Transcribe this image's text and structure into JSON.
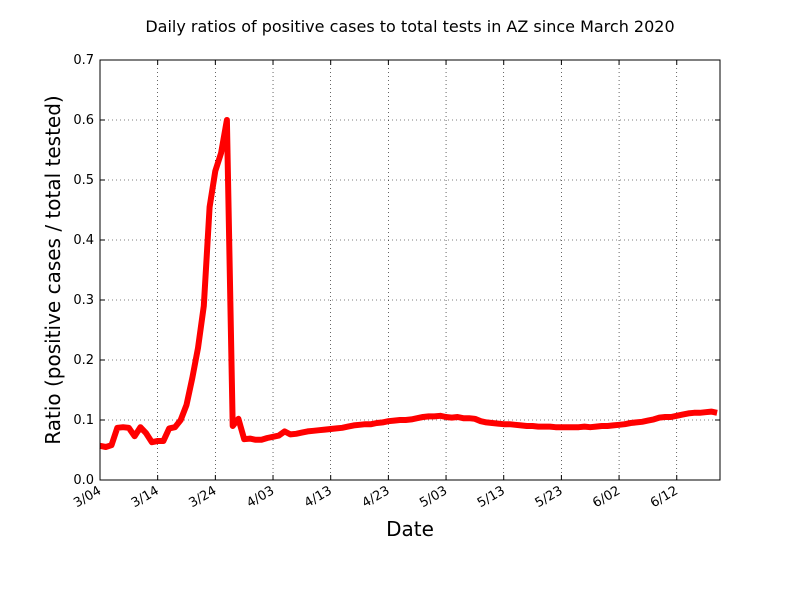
{
  "chart_data": {
    "type": "line",
    "title": "Daily ratios of positive cases to total tests in AZ since March 2020",
    "xlabel": "Date",
    "ylabel": "Ratio (positive cases / total tested)",
    "ylim": [
      0.0,
      0.7
    ],
    "yticks": [
      0.0,
      0.1,
      0.2,
      0.3,
      0.4,
      0.5,
      0.6,
      0.7
    ],
    "ytick_labels": [
      "0.0",
      "0.1",
      "0.2",
      "0.3",
      "0.4",
      "0.5",
      "0.6",
      "0.7"
    ],
    "xlim": [
      "3/04",
      "6/19"
    ],
    "xticks": [
      "3/04",
      "3/14",
      "3/24",
      "4/03",
      "4/13",
      "4/23",
      "5/03",
      "5/13",
      "5/23",
      "6/02",
      "6/12"
    ],
    "grid": true,
    "series": [
      {
        "color": "#ff0000",
        "x": [
          "3/04",
          "3/05",
          "3/06",
          "3/07",
          "3/08",
          "3/09",
          "3/10",
          "3/11",
          "3/12",
          "3/13",
          "3/14",
          "3/15",
          "3/16",
          "3/17",
          "3/18",
          "3/19",
          "3/20",
          "3/21",
          "3/22",
          "3/23",
          "3/24",
          "3/25",
          "3/26",
          "3/27",
          "3/28",
          "3/29",
          "3/30",
          "3/31",
          "4/01",
          "4/02",
          "4/03",
          "4/04",
          "4/05",
          "4/06",
          "4/07",
          "4/08",
          "4/09",
          "4/10",
          "4/11",
          "4/12",
          "4/13",
          "4/14",
          "4/15",
          "4/16",
          "4/17",
          "4/18",
          "4/19",
          "4/20",
          "4/21",
          "4/22",
          "4/23",
          "4/24",
          "4/25",
          "4/26",
          "4/27",
          "4/28",
          "4/29",
          "4/30",
          "5/01",
          "5/02",
          "5/03",
          "5/04",
          "5/05",
          "5/06",
          "5/07",
          "5/08",
          "5/09",
          "5/10",
          "5/11",
          "5/12",
          "5/13",
          "5/14",
          "5/15",
          "5/16",
          "5/17",
          "5/18",
          "5/19",
          "5/20",
          "5/21",
          "5/22",
          "5/23",
          "5/24",
          "5/25",
          "5/26",
          "5/27",
          "5/28",
          "5/29",
          "5/30",
          "5/31",
          "6/01",
          "6/02",
          "6/03",
          "6/04",
          "6/05",
          "6/06",
          "6/07",
          "6/08",
          "6/09",
          "6/10",
          "6/11",
          "6/12",
          "6/13",
          "6/14",
          "6/15",
          "6/16",
          "6/17",
          "6/18",
          "6/19"
        ],
        "values": [
          0.057,
          0.055,
          0.058,
          0.087,
          0.088,
          0.087,
          0.073,
          0.088,
          0.078,
          0.063,
          0.065,
          0.065,
          0.086,
          0.088,
          0.1,
          0.125,
          0.17,
          0.22,
          0.29,
          0.455,
          0.515,
          0.545,
          0.6,
          0.09,
          0.102,
          0.068,
          0.069,
          0.067,
          0.067,
          0.07,
          0.072,
          0.074,
          0.081,
          0.076,
          0.077,
          0.079,
          0.081,
          0.082,
          0.083,
          0.084,
          0.085,
          0.086,
          0.087,
          0.089,
          0.091,
          0.092,
          0.093,
          0.093,
          0.095,
          0.096,
          0.098,
          0.099,
          0.1,
          0.1,
          0.101,
          0.103,
          0.105,
          0.106,
          0.106,
          0.107,
          0.105,
          0.104,
          0.105,
          0.103,
          0.103,
          0.102,
          0.098,
          0.096,
          0.095,
          0.094,
          0.093,
          0.093,
          0.092,
          0.091,
          0.09,
          0.09,
          0.089,
          0.089,
          0.089,
          0.088,
          0.088,
          0.088,
          0.088,
          0.088,
          0.089,
          0.088,
          0.089,
          0.09,
          0.09,
          0.091,
          0.092,
          0.093,
          0.095,
          0.096,
          0.097,
          0.099,
          0.101,
          0.104,
          0.105,
          0.105,
          0.107,
          0.109,
          0.111,
          0.112,
          0.112,
          0.113,
          0.114,
          0.112
        ]
      }
    ]
  }
}
